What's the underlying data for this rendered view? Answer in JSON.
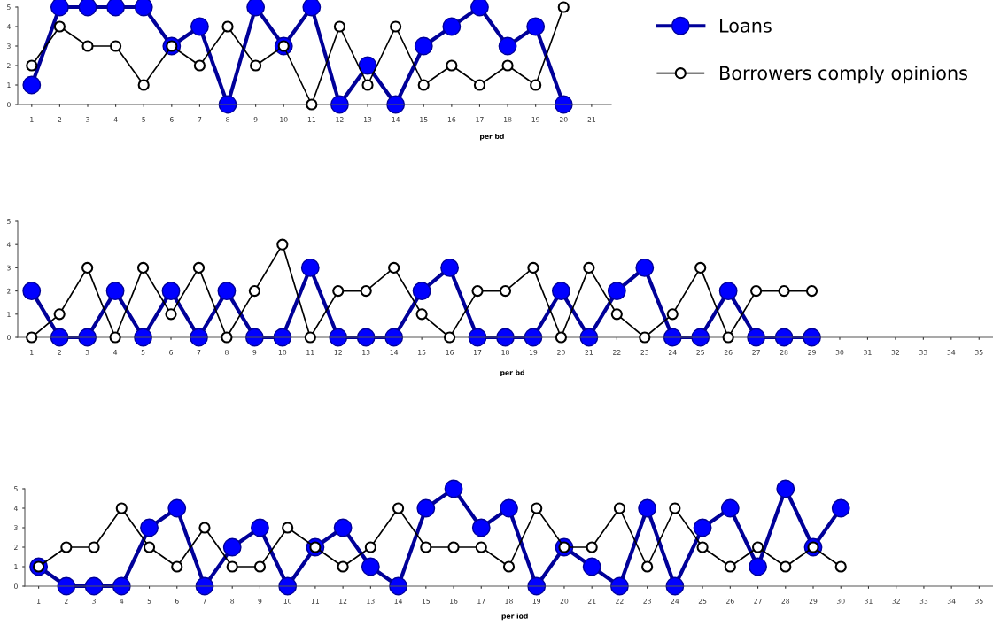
{
  "chart_data": [
    {
      "type": "line",
      "xlabel": "per bd",
      "x": [
        1,
        2,
        3,
        4,
        5,
        6,
        7,
        8,
        9,
        10,
        11,
        12,
        13,
        14,
        15,
        16,
        17,
        18,
        19,
        20
      ],
      "xlim": [
        0.5,
        21.7
      ],
      "xticks": [
        1,
        2,
        3,
        4,
        5,
        6,
        7,
        8,
        9,
        10,
        11,
        12,
        13,
        14,
        15,
        16,
        17,
        18,
        19,
        20,
        21
      ],
      "ylim": [
        0,
        5
      ],
      "yticks": [
        0,
        1,
        2,
        3,
        4,
        5
      ],
      "grid": false,
      "legend": "right",
      "marker": "circle",
      "line_style": "solid",
      "series": [
        {
          "name": "Loans",
          "color": "#0000ff",
          "values": [
            1,
            5,
            5,
            5,
            5,
            3,
            4,
            0,
            5,
            3,
            5,
            0,
            2,
            0,
            3,
            4,
            5,
            3,
            4,
            0
          ]
        },
        {
          "name": "Borrowers comply opinions",
          "color": "#000000",
          "values": [
            2,
            4,
            3,
            3,
            1,
            3,
            2,
            4,
            2,
            3,
            0,
            4,
            1,
            4,
            1,
            2,
            1,
            2,
            1,
            5
          ]
        }
      ]
    },
    {
      "type": "line",
      "xlabel": "per bd",
      "x": [
        1,
        2,
        3,
        4,
        5,
        6,
        7,
        8,
        9,
        10,
        11,
        12,
        13,
        14,
        15,
        16,
        17,
        18,
        19,
        20,
        21,
        22,
        23,
        24,
        25,
        26,
        27,
        28,
        29
      ],
      "xlim": [
        0.5,
        35.5
      ],
      "xticks": [
        1,
        2,
        3,
        4,
        5,
        6,
        7,
        8,
        9,
        10,
        11,
        12,
        13,
        14,
        15,
        16,
        17,
        18,
        19,
        20,
        21,
        22,
        23,
        24,
        25,
        26,
        27,
        28,
        29,
        30,
        31,
        32,
        33,
        34,
        35
      ],
      "ylim": [
        0,
        5
      ],
      "yticks": [
        0,
        1,
        2,
        3,
        4,
        5
      ],
      "grid": false,
      "legend": false,
      "marker": "circle",
      "line_style": "solid",
      "series": [
        {
          "color": "#0000ff",
          "values": [
            2,
            0,
            0,
            2,
            0,
            2,
            0,
            2,
            0,
            0,
            3,
            0,
            0,
            0,
            2,
            3,
            0,
            0,
            0,
            2,
            0,
            2,
            3,
            0,
            0,
            2,
            0,
            0,
            0
          ]
        },
        {
          "color": "#000000",
          "values": [
            0,
            1,
            3,
            0,
            3,
            1,
            3,
            0,
            2,
            4,
            0,
            2,
            2,
            3,
            1,
            0,
            2,
            2,
            3,
            0,
            3,
            1,
            0,
            1,
            3,
            0,
            2,
            2,
            2
          ]
        }
      ]
    },
    {
      "type": "line",
      "xlabel": "per iod",
      "x": [
        1,
        2,
        3,
        4,
        5,
        6,
        7,
        8,
        9,
        10,
        11,
        12,
        13,
        14,
        15,
        16,
        17,
        18,
        19,
        20,
        21,
        22,
        23,
        24,
        25,
        26,
        27,
        28,
        29,
        30
      ],
      "xlim": [
        0.5,
        35.5
      ],
      "xticks": [
        1,
        2,
        3,
        4,
        5,
        6,
        7,
        8,
        9,
        10,
        11,
        12,
        13,
        14,
        15,
        16,
        17,
        18,
        19,
        20,
        21,
        22,
        23,
        24,
        25,
        26,
        27,
        28,
        29,
        30,
        31,
        32,
        33,
        34,
        35
      ],
      "ylim": [
        0,
        5
      ],
      "yticks": [
        0,
        1,
        2,
        3,
        4,
        5
      ],
      "grid": false,
      "legend": false,
      "marker": "circle",
      "line_style": "solid",
      "series": [
        {
          "color": "#0000ff",
          "values": [
            1,
            0,
            0,
            0,
            3,
            4,
            0,
            2,
            3,
            0,
            2,
            3,
            1,
            0,
            4,
            5,
            3,
            4,
            0,
            2,
            1,
            0,
            4,
            0,
            3,
            4,
            1,
            5,
            2,
            4
          ]
        },
        {
          "color": "#000000",
          "values": [
            1,
            2,
            2,
            4,
            2,
            1,
            3,
            1,
            1,
            3,
            2,
            1,
            2,
            4,
            2,
            2,
            2,
            1,
            4,
            2,
            2,
            4,
            1,
            4,
            2,
            1,
            2,
            1,
            2,
            1
          ]
        }
      ]
    }
  ]
}
